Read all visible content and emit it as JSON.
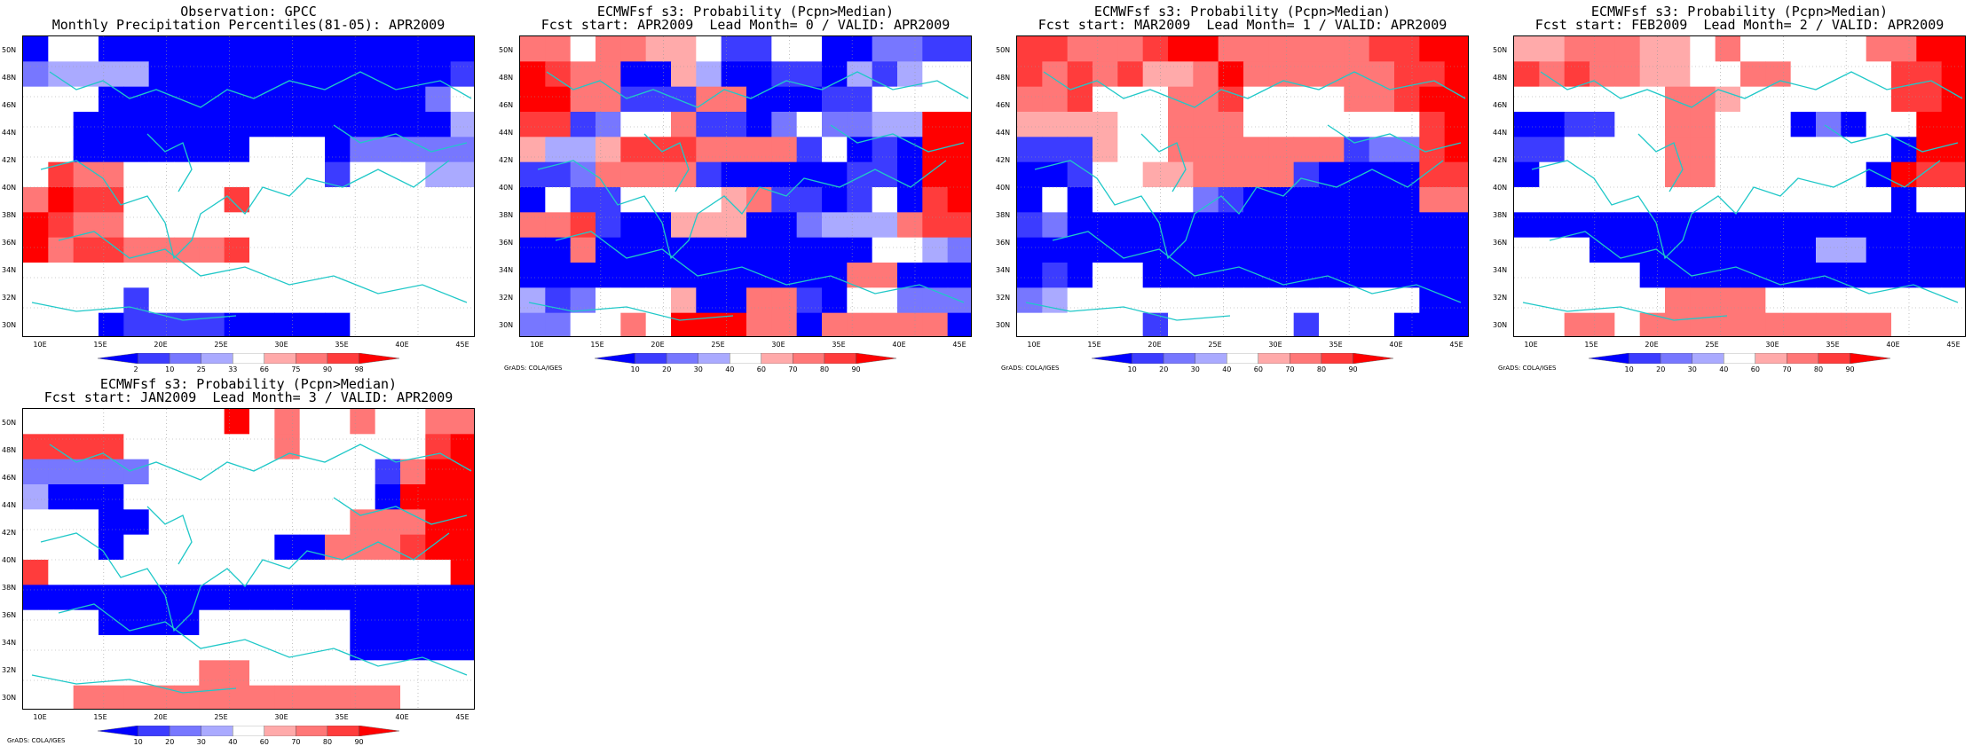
{
  "colors": {
    "scale": [
      "#0000ff",
      "#3c3cff",
      "#7777ff",
      "#aaaaff",
      "#ffffff",
      "#ffaaaa",
      "#ff7777",
      "#ff3c3c",
      "#ff0000"
    ],
    "coast": "#20c8c8"
  },
  "axes": {
    "y_labels": [
      "50N",
      "48N",
      "46N",
      "44N",
      "42N",
      "40N",
      "38N",
      "36N",
      "34N",
      "32N",
      "30N"
    ],
    "x_labels": [
      "10E",
      "15E",
      "20E",
      "25E",
      "30E",
      "35E",
      "40E",
      "45E"
    ]
  },
  "credit": "GrADS: COLA/IGES",
  "panels": [
    {
      "title_line1": "Observation: GPCC",
      "title_line2": "Monthly Precipitation Percentiles(81-05): APR2009",
      "colorbar_labels": [
        "2",
        "10",
        "25",
        "33",
        "66",
        "75",
        "90",
        "98"
      ],
      "show_credit": false,
      "grid": [
        "044000000000000000",
        "233330000000000001",
        "444000000000000024",
        "440000000000000003",
        "440000000444022222",
        "476644444444144433",
        "687744447444444444",
        "876644444444444444",
        "867766667444444444",
        "444444444444444444",
        "444414444444444444",
        "444011110000044444"
      ]
    },
    {
      "title_line1": "ECMWFsf s3: Probability (Pcpn>Median)",
      "title_line2": "Fcst start: APR2009  Lead Month= 0 / VALID: APR2009",
      "colorbar_labels": [
        "10",
        "20",
        "30",
        "40",
        "60",
        "70",
        "80",
        "90"
      ],
      "show_credit": true,
      "grid": [
        "664665541144002211",
        "876600530011031344",
        "886611166000114444",
        "771244611024223388",
        "533577766661401088",
        "112666610000011088",
        "041144445611014078",
        "667100555002333677",
        "006000000000004432",
        "000000000000066000",
        "312444500661044222",
        "224464888660666660"
      ]
    },
    {
      "title_line1": "ECMWFsf s3: Probability (Pcpn>Median)",
      "title_line2": "Fcst start: MAR2009  Lead Month= 1 / VALID: APR2009",
      "colorbar_labels": [
        "10",
        "20",
        "30",
        "40",
        "60",
        "70",
        "80",
        "90"
      ],
      "show_credit": true,
      "grid": [
        "776667886666667788",
        "767675568666666778",
        "667444667444466788",
        "555544666444444478",
        "111544666666612278",
        "001445566661000077",
        "040444421000000066",
        "120000000000000000",
        "000000000000000000",
        "010440000000000000",
        "234444444444444400",
        "444441444441444000"
      ]
    },
    {
      "title_line1": "ECMWFsf s3: Probability (Pcpn>Median)",
      "title_line2": "Fcst start: FEB2009  Lead Month= 2 / VALID: APR2009",
      "colorbar_labels": [
        "10",
        "20",
        "30",
        "40",
        "60",
        "70",
        "80",
        "90"
      ],
      "show_credit": true,
      "grid": [
        "556665546444446688",
        "767665544664444778",
        "444444665444444778",
        "001144664440204488",
        "114444664444444088",
        "044444664444440877",
        "444444444444444044",
        "000000000000000000",
        "444000000000330000",
        "444440000000000000",
        "444444666644444444",
        "446646666666666444"
      ]
    },
    {
      "title_line1": "ECMWFsf s3: Probability (Pcpn>Median)",
      "title_line2": "Fcst start: JAN2009  Lead Month= 3 / VALID: APR2009",
      "colorbar_labels": [
        "10",
        "20",
        "30",
        "40",
        "60",
        "70",
        "80",
        "90"
      ],
      "show_credit": true,
      "grid": [
        "444444448464464466",
        "777744444464444478",
        "222224444444441688",
        "300044444444440888",
        "444004444444466688",
        "444044444400666788",
        "744444444444444448",
        "000000000000000000",
        "444000044444400000",
        "444444444444400000",
        "444444466444444444",
        "446666666666666444"
      ]
    }
  ]
}
